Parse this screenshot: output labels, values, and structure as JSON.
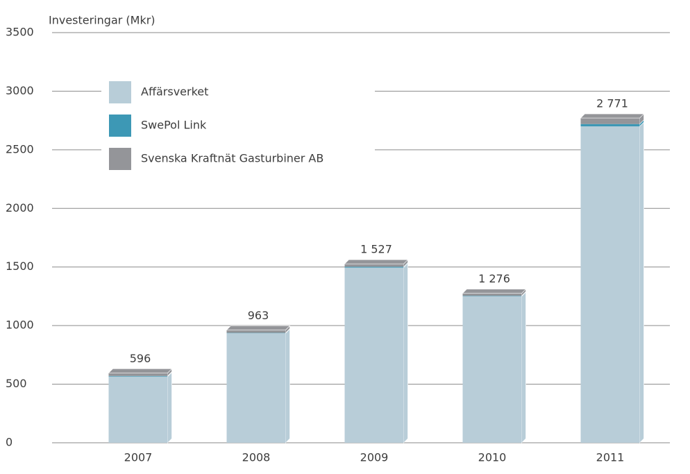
{
  "chart_data": {
    "type": "stacked_bar_3d",
    "y_label": "Investeringar (Mkr)",
    "categories": [
      "2007",
      "2008",
      "2009",
      "2010",
      "2011"
    ],
    "series": [
      {
        "name": "Affärsverket",
        "color": "#b8cdd8",
        "values": [
          565,
          935,
          1495,
          1250,
          2700
        ]
      },
      {
        "name": "SwePol Link",
        "color": "#3d98b5",
        "values": [
          5,
          3,
          7,
          4,
          20
        ]
      },
      {
        "name": "Svenska Kraftnät Gasturbiner AB",
        "color": "#949599",
        "values": [
          26,
          25,
          25,
          22,
          51
        ]
      }
    ],
    "totals": [
      596,
      963,
      1527,
      1276,
      2771
    ],
    "total_labels": [
      "596",
      "963",
      "1 527",
      "1 276",
      "2 771"
    ],
    "ylim": [
      0,
      3500
    ],
    "yticks": [
      0,
      500,
      1000,
      1500,
      2000,
      2500,
      3000,
      3500
    ],
    "grid": true
  }
}
